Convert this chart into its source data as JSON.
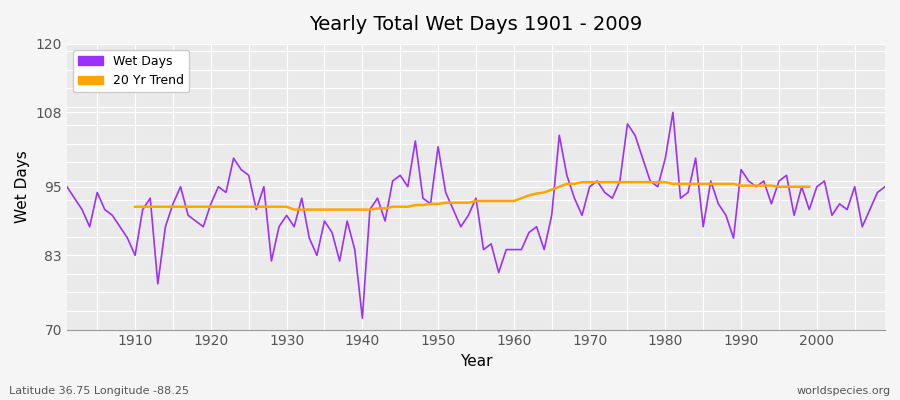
{
  "title": "Yearly Total Wet Days 1901 - 2009",
  "xlabel": "Year",
  "ylabel": "Wet Days",
  "xlim": [
    1901,
    2009
  ],
  "ylim": [
    70,
    120
  ],
  "yticks": [
    70,
    83,
    95,
    108,
    120
  ],
  "xticks": [
    1910,
    1920,
    1930,
    1940,
    1950,
    1960,
    1970,
    1980,
    1990,
    2000
  ],
  "wet_days_color": "#9B30FF",
  "trend_color": "#FFA500",
  "bg_color": "#EAEAEA",
  "fig_color": "#F5F5F5",
  "grid_color": "#FFFFFF",
  "legend_labels": [
    "Wet Days",
    "20 Yr Trend"
  ],
  "footnote_left": "Latitude 36.75 Longitude -88.25",
  "footnote_right": "worldspecies.org",
  "years": [
    1901,
    1902,
    1903,
    1904,
    1905,
    1906,
    1907,
    1908,
    1909,
    1910,
    1911,
    1912,
    1913,
    1914,
    1915,
    1916,
    1917,
    1918,
    1919,
    1920,
    1921,
    1922,
    1923,
    1924,
    1925,
    1926,
    1927,
    1928,
    1929,
    1930,
    1931,
    1932,
    1933,
    1934,
    1935,
    1936,
    1937,
    1938,
    1939,
    1940,
    1941,
    1942,
    1943,
    1944,
    1945,
    1946,
    1947,
    1948,
    1949,
    1950,
    1951,
    1952,
    1953,
    1954,
    1955,
    1956,
    1957,
    1958,
    1959,
    1960,
    1961,
    1962,
    1963,
    1964,
    1965,
    1966,
    1967,
    1968,
    1969,
    1970,
    1971,
    1972,
    1973,
    1974,
    1975,
    1976,
    1977,
    1978,
    1979,
    1980,
    1981,
    1982,
    1983,
    1984,
    1985,
    1986,
    1987,
    1988,
    1989,
    1990,
    1991,
    1992,
    1993,
    1994,
    1995,
    1996,
    1997,
    1998,
    1999,
    2000,
    2001,
    2002,
    2003,
    2004,
    2005,
    2006,
    2007,
    2008,
    2009
  ],
  "wet_days": [
    95,
    93,
    91,
    88,
    94,
    91,
    90,
    88,
    86,
    83,
    91,
    93,
    78,
    88,
    92,
    95,
    90,
    89,
    88,
    92,
    95,
    94,
    100,
    98,
    97,
    91,
    95,
    82,
    88,
    90,
    88,
    93,
    86,
    83,
    89,
    87,
    82,
    89,
    84,
    72,
    91,
    93,
    89,
    96,
    97,
    95,
    103,
    93,
    92,
    102,
    94,
    91,
    88,
    90,
    93,
    84,
    85,
    80,
    84,
    84,
    84,
    87,
    88,
    84,
    90,
    104,
    97,
    93,
    90,
    95,
    96,
    94,
    93,
    96,
    106,
    104,
    100,
    96,
    95,
    100,
    108,
    93,
    94,
    100,
    88,
    96,
    92,
    90,
    86,
    98,
    96,
    95,
    96,
    92,
    96,
    97,
    90,
    95,
    91,
    95,
    96,
    90,
    92,
    91,
    95,
    88,
    91,
    94,
    95
  ],
  "trend": [
    null,
    null,
    null,
    null,
    null,
    null,
    null,
    null,
    null,
    91.5,
    91.5,
    91.5,
    91.5,
    91.5,
    91.5,
    91.5,
    91.5,
    91.5,
    91.5,
    91.5,
    91.5,
    91.5,
    91.5,
    91.5,
    91.5,
    91.5,
    91.5,
    91.5,
    91.5,
    91.5,
    91.0,
    91.0,
    91.0,
    91.0,
    91.0,
    91.0,
    91.0,
    91.0,
    91.0,
    91.0,
    91.0,
    91.2,
    91.2,
    91.5,
    91.5,
    91.5,
    91.8,
    91.8,
    92.0,
    92.0,
    92.2,
    92.2,
    92.2,
    92.2,
    92.5,
    92.5,
    92.5,
    92.5,
    92.5,
    92.5,
    93.0,
    93.5,
    93.8,
    94.0,
    94.5,
    95.0,
    95.5,
    95.5,
    95.8,
    95.8,
    95.8,
    95.8,
    95.8,
    95.8,
    95.8,
    95.8,
    95.8,
    95.8,
    95.8,
    95.8,
    95.5,
    95.5,
    95.5,
    95.5,
    95.5,
    95.5,
    95.5,
    95.5,
    95.5,
    95.2,
    95.2,
    95.2,
    95.2,
    95.2,
    95.0,
    95.0,
    95.0,
    95.0,
    95.0
  ]
}
